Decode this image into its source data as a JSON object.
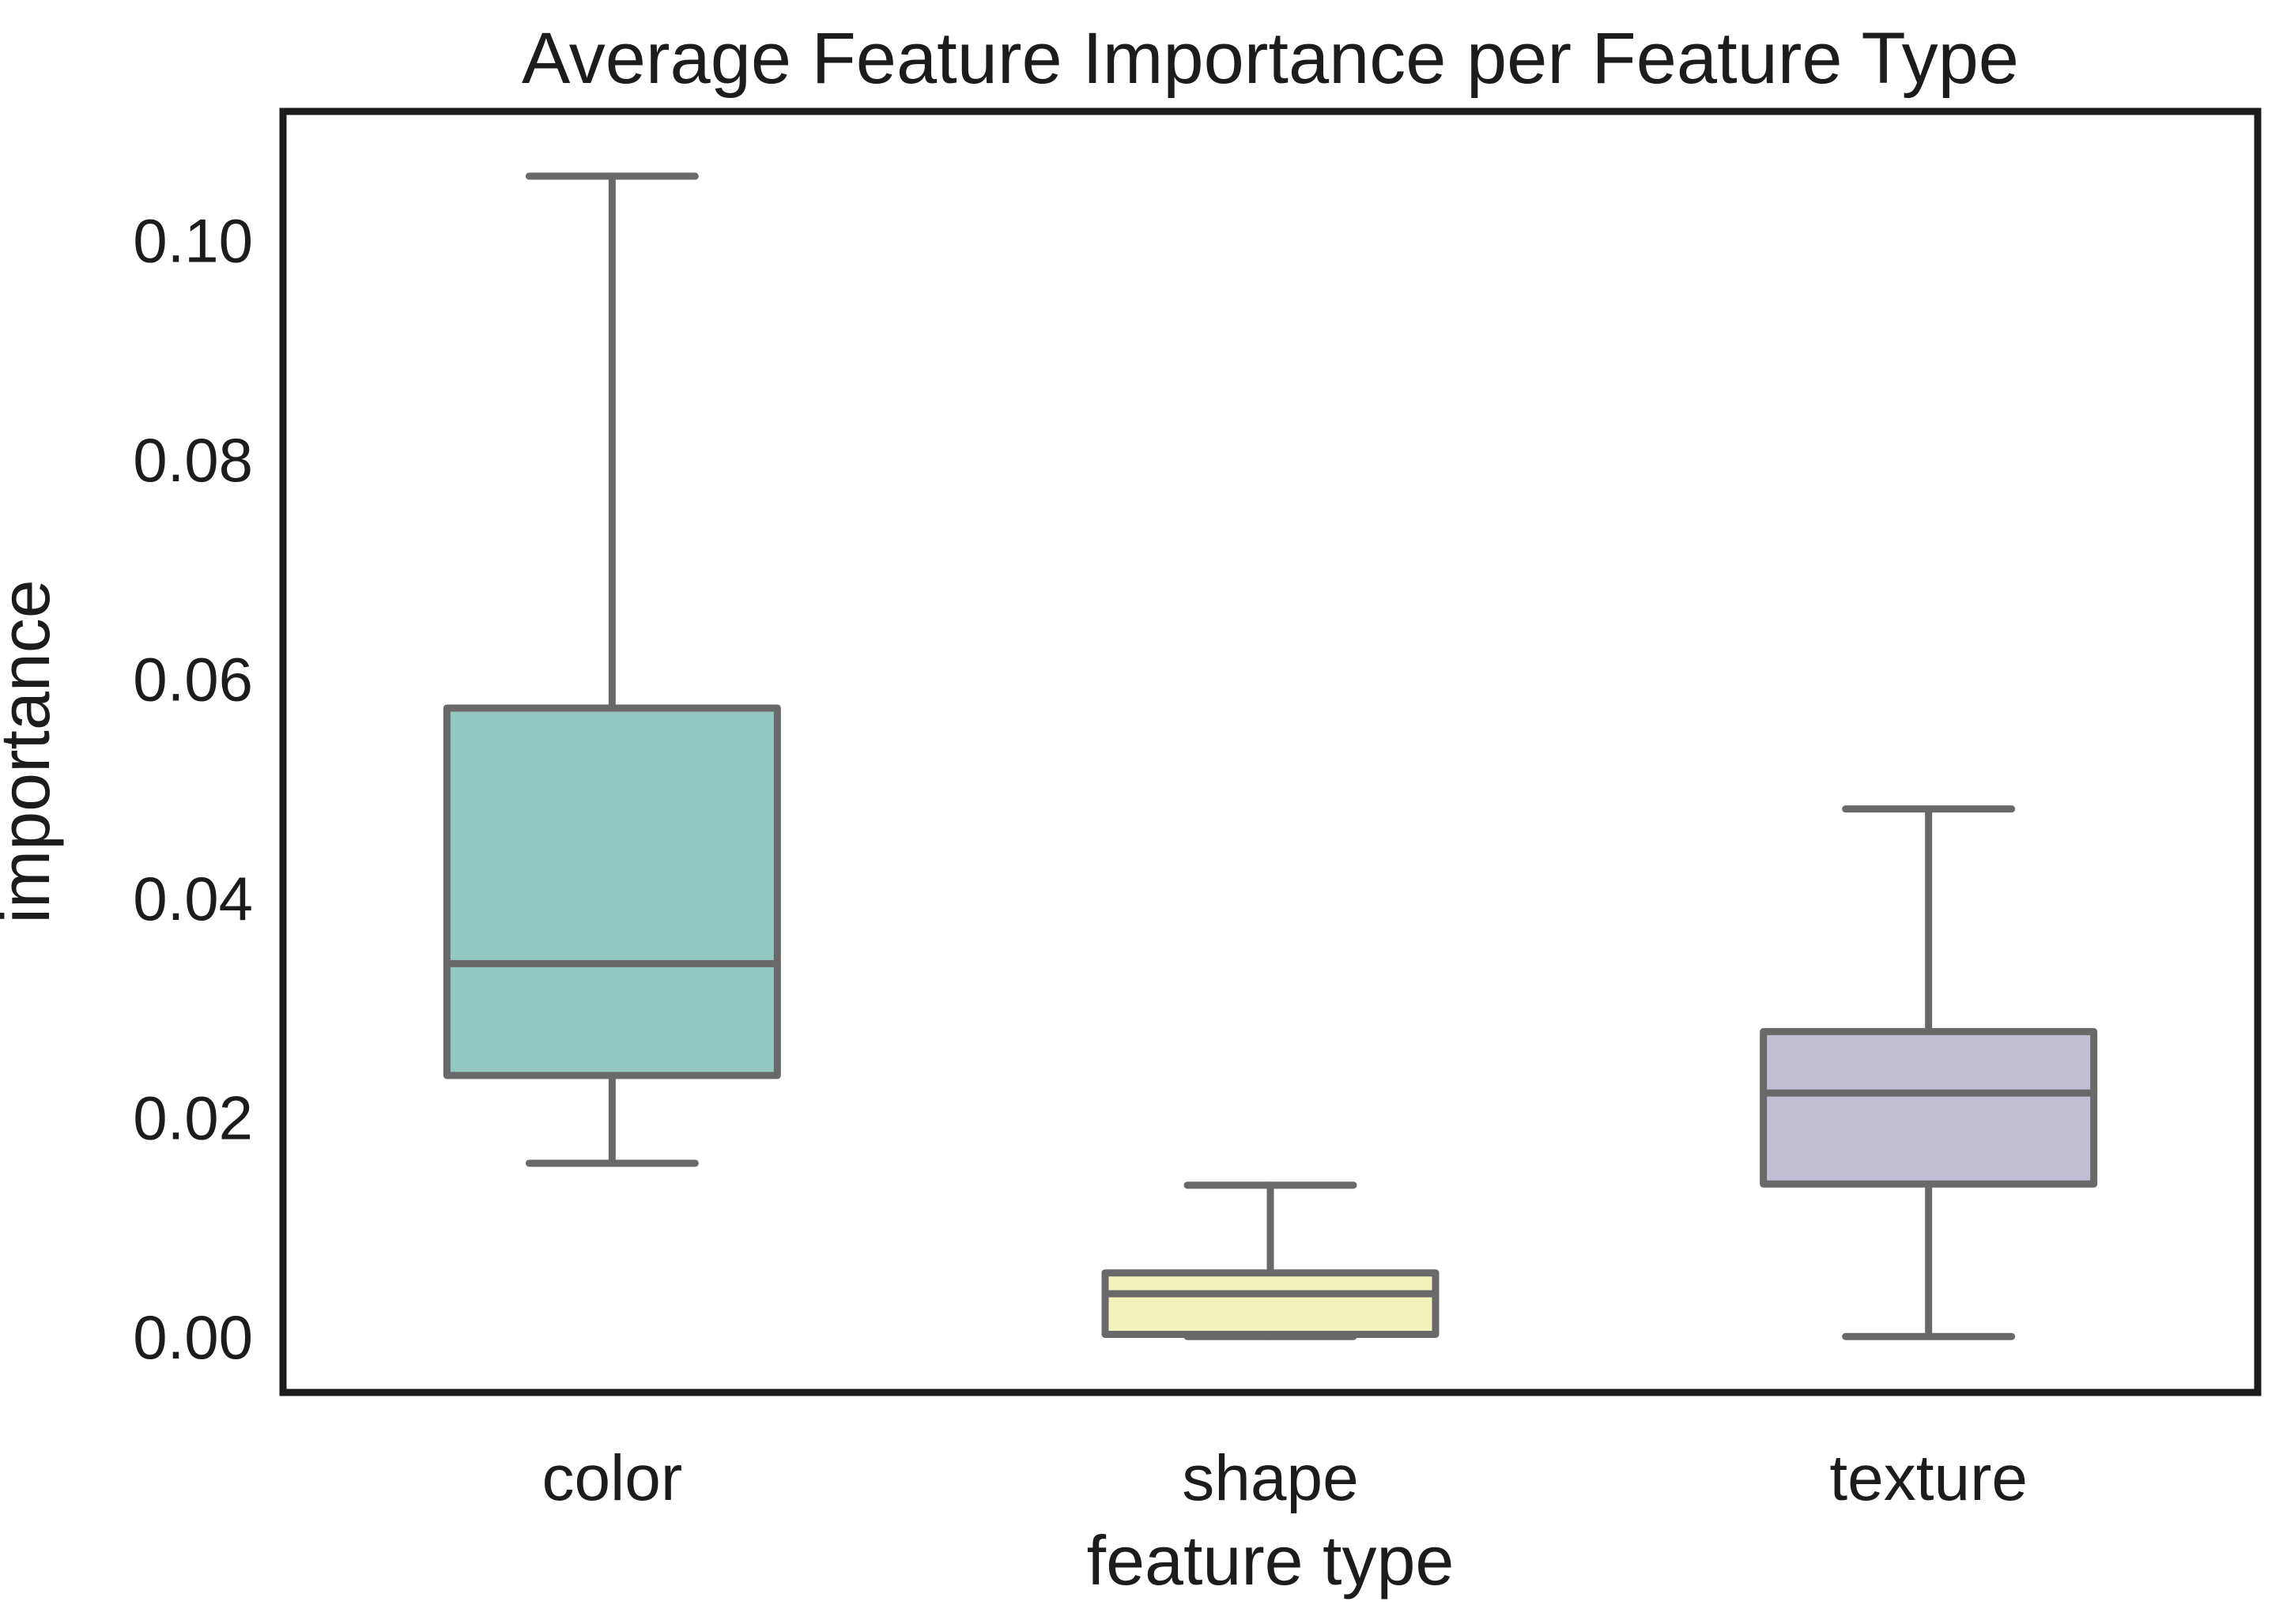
{
  "chart_data": {
    "type": "box",
    "title": "Average Feature Importance per Feature Type",
    "xlabel": "feature type",
    "ylabel": "importance",
    "categories": [
      "color",
      "shape",
      "texture"
    ],
    "series": [
      {
        "name": "color",
        "whislo": 0.0158,
        "q1": 0.0238,
        "med": 0.034,
        "q3": 0.0573,
        "whishi": 0.1058,
        "fill": "#95c8c0"
      },
      {
        "name": "shape",
        "whislo": 0.0,
        "q1": 0.0002,
        "med": 0.0039,
        "q3": 0.0058,
        "whishi": 0.0138,
        "fill": "#f1f2bc"
      },
      {
        "name": "texture",
        "whislo": 0.0,
        "q1": 0.0139,
        "med": 0.0222,
        "q3": 0.0278,
        "whishi": 0.0481,
        "fill": "#c2bed4"
      }
    ],
    "yticks": [
      "0.00",
      "0.02",
      "0.04",
      "0.06",
      "0.08",
      "0.10"
    ],
    "ytick_values": [
      0.0,
      0.02,
      0.04,
      0.06,
      0.08,
      0.1
    ],
    "ylim": [
      -0.0051,
      0.1117
    ],
    "grid": false,
    "legend": null,
    "colors": {
      "box_edge": "#696969",
      "whisker": "#696969",
      "spine": "#1c1c1c",
      "text": "#1c1c1c",
      "background": "#ffffff"
    }
  }
}
